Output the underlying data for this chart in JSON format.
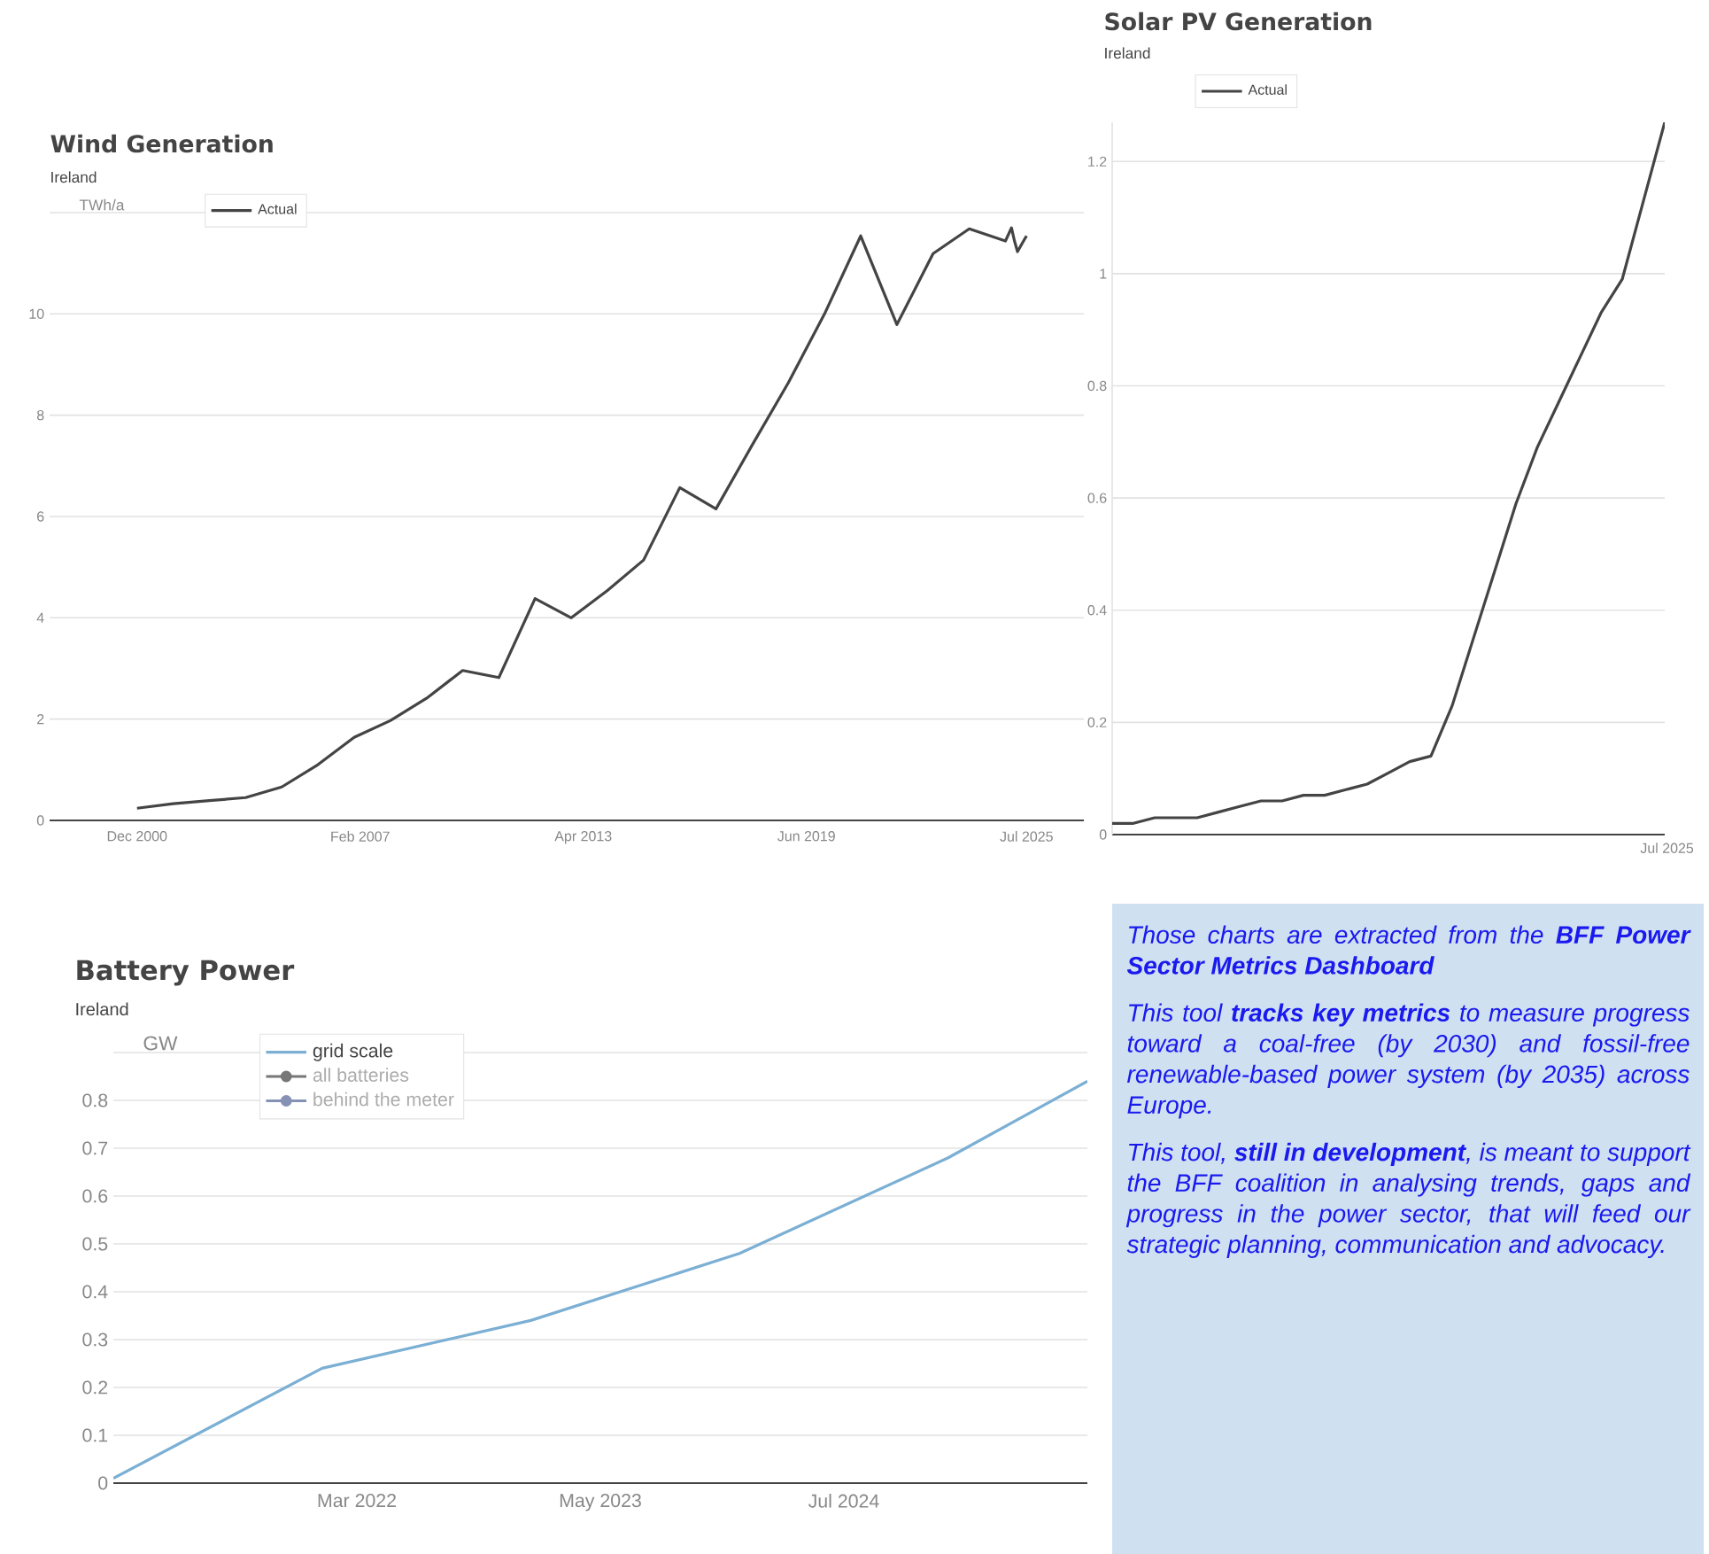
{
  "chart_data": [
    {
      "type": "line",
      "title": "Wind Generation",
      "subtitle": "Ireland",
      "ylabel": "TWh/a",
      "x": [
        "2000-12",
        "2001-12",
        "2002-12",
        "2003-12",
        "2004-12",
        "2005-12",
        "2006-12",
        "2007-12",
        "2008-12",
        "2009-12",
        "2010-12",
        "2011-12",
        "2012-12",
        "2013-12",
        "2014-12",
        "2015-12",
        "2016-12",
        "2017-12",
        "2018-12",
        "2019-12",
        "2020-12",
        "2021-12",
        "2022-12",
        "2023-12",
        "2024-12",
        "2025-02",
        "2025-03",
        "2025-04",
        "2025-06",
        "2025-07"
      ],
      "series": [
        {
          "name": "Actual",
          "color": "#444444",
          "values": [
            0.24,
            0.33,
            0.39,
            0.45,
            0.66,
            1.1,
            1.64,
            1.97,
            2.41,
            2.96,
            2.82,
            4.38,
            4.0,
            4.54,
            5.14,
            6.57,
            6.15,
            7.41,
            8.64,
            10.0,
            11.54,
            9.79,
            11.19,
            11.68,
            11.44,
            11.7,
            11.44,
            11.23,
            11.44,
            11.54
          ]
        }
      ],
      "xlim": [
        "1998-07",
        "2027-02"
      ],
      "xticks": [
        {
          "value": "2000-12",
          "label": "Dec 2000"
        },
        {
          "value": "2007-02",
          "label": "Feb 2007"
        },
        {
          "value": "2013-04",
          "label": "Apr 2013"
        },
        {
          "value": "2019-06",
          "label": "Jun 2019"
        },
        {
          "value": "2025-07",
          "label": "Jul 2025"
        }
      ],
      "ylim": [
        0,
        12
      ],
      "yticks": [
        0,
        2,
        4,
        6,
        8,
        10,
        {
          "value": 12,
          "label": null
        }
      ],
      "grid": "y",
      "legend": "top left"
    },
    {
      "type": "line",
      "title": "Solar PV Generation",
      "subtitle": "Ireland",
      "categories": [
        null,
        null,
        null,
        null,
        null,
        null,
        null,
        null,
        null,
        null,
        null,
        null,
        null,
        null,
        null,
        null,
        null,
        null,
        null,
        null,
        null,
        null,
        null,
        null,
        null,
        null,
        null
      ],
      "series": [
        {
          "name": "Actual",
          "color": "#444444",
          "values": [
            0.02,
            0.02,
            0.03,
            0.03,
            0.03,
            0.04,
            0.05,
            0.06,
            0.06,
            0.07,
            0.07,
            0.08,
            0.09,
            0.11,
            0.13,
            0.14,
            0.23,
            0.35,
            0.47,
            0.59,
            0.69,
            0.77,
            0.85,
            0.93,
            0.99,
            1.13,
            1.27
          ]
        }
      ],
      "annotations": [
        "Jul 2025"
      ],
      "ylim": [
        0,
        1.27
      ],
      "yticks": [
        0,
        0.2,
        0.4,
        0.6,
        0.8,
        1,
        1.2
      ],
      "grid": "y",
      "legend": "top"
    },
    {
      "type": "line",
      "title": "Battery Power",
      "subtitle": "Ireland",
      "ylabel": "GW",
      "x": [
        "2021-01",
        "2022-01",
        "2023-01",
        "2024-01",
        "2025-01",
        "2025-09"
      ],
      "series": [
        {
          "name": "grid scale",
          "color": "#7bafd4",
          "values": [
            0.01,
            0.24,
            0.34,
            0.48,
            0.68,
            0.84
          ]
        },
        {
          "name": "all batteries",
          "color": "#777777",
          "marker": "circle",
          "values": [
            null,
            null,
            null,
            null,
            null,
            null
          ]
        },
        {
          "name": "behind the meter",
          "color": "#8592b5",
          "marker": "circle",
          "values": [
            null,
            null,
            null,
            null,
            null,
            null
          ]
        }
      ],
      "xlim": [
        "2021-01",
        "2025-09"
      ],
      "xticks": [
        {
          "value": "2022-03",
          "label": "Mar 2022"
        },
        {
          "value": "2023-05",
          "label": "May 2023"
        },
        {
          "value": "2024-07",
          "label": "Jul 2024"
        }
      ],
      "ylim": [
        0,
        0.9
      ],
      "yticks": [
        0,
        0.1,
        0.2,
        0.3,
        0.4,
        0.5,
        0.6,
        0.7,
        0.8,
        {
          "value": 0.9,
          "label": null
        }
      ],
      "grid": "y",
      "legend": "top left"
    },
    {
      "type": "other",
      "annotations": [
        "Those charts are extracted from the **BFF Power Sector Metrics Dashboard**",
        "This tool **tracks key metrics** to measure progress toward a coal-free (by 2030) and fossil-free renewable-based power system (by 2035) across Europe.",
        "This tool, **still in development**, is meant to support the BFF coalition in analysing trends, gaps and progress in the power sector, that will feed our strategic planning, communication and advocacy."
      ]
    }
  ]
}
